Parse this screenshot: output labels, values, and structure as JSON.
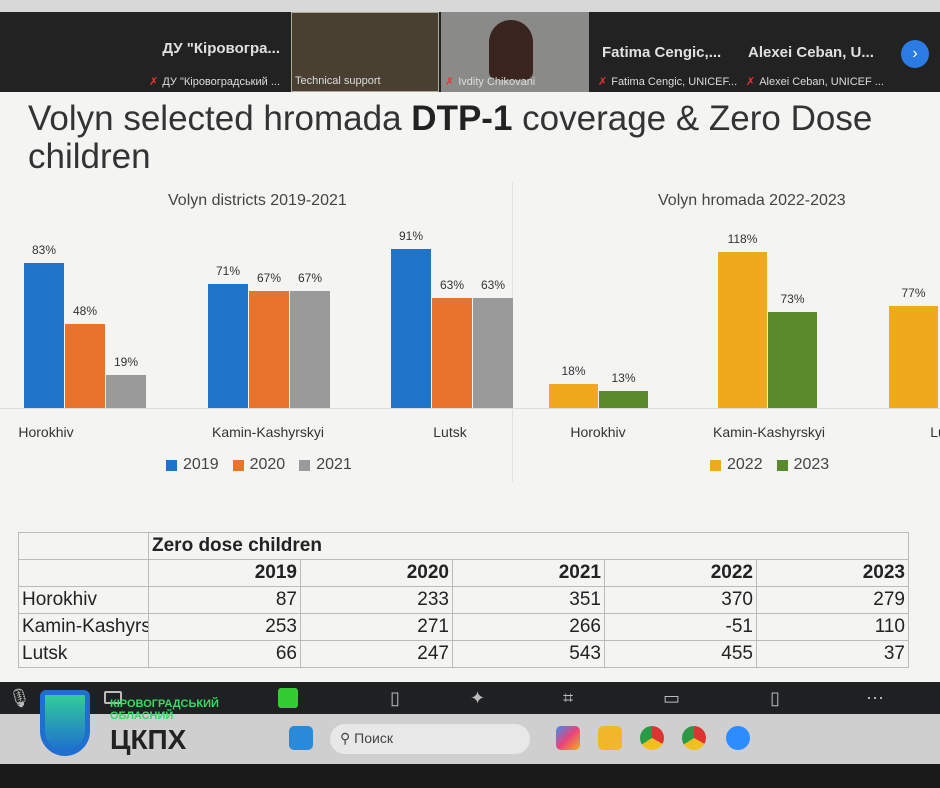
{
  "meeting": {
    "participants": [
      {
        "name": "ДУ \"Кіровогра...",
        "subtitle": "ДУ \"Кіровоградський ..."
      },
      {
        "name": "",
        "subtitle": "Technical support"
      },
      {
        "name": "",
        "subtitle": "Ivdity Chikovani"
      },
      {
        "name": "Fatima  Cengic,...",
        "subtitle": "Fatima Cengic, UNICEF..."
      },
      {
        "name": "Alexei  Ceban,  U...",
        "subtitle": "Alexei Ceban, UNICEF ..."
      }
    ],
    "next_icon": "chevron-right-icon"
  },
  "slide": {
    "title_pre": "Volyn selected hromada ",
    "title_bold": "DTP-1",
    "title_post": " coverage & Zero Dose children"
  },
  "chart_data": [
    {
      "type": "bar",
      "title": "Volyn districts 2019-2021",
      "categories": [
        "Horokhiv",
        "Kamin-Kashyrskyi",
        "Lutsk"
      ],
      "series": [
        {
          "name": "2019",
          "color": "#1f73c8",
          "values": [
            83,
            71,
            91
          ]
        },
        {
          "name": "2020",
          "color": "#e8732a",
          "values": [
            48,
            67,
            63
          ]
        },
        {
          "name": "2021",
          "color": "#9a9a9a",
          "values": [
            19,
            67,
            63
          ]
        }
      ],
      "unit": "%",
      "ylim": [
        0,
        100
      ]
    },
    {
      "type": "bar",
      "title": "Volyn hromada 2022-2023",
      "categories": [
        "Horokhiv",
        "Kamin-Kashyrskyi",
        "Lu"
      ],
      "series": [
        {
          "name": "2022",
          "color": "#f0a91c",
          "values": [
            18,
            118,
            77
          ]
        },
        {
          "name": "2023",
          "color": "#5a8a2c",
          "values": [
            13,
            73,
            null
          ]
        }
      ],
      "unit": "%",
      "ylim": [
        0,
        120
      ]
    }
  ],
  "table": {
    "title": "Zero dose children",
    "years": [
      "2019",
      "2020",
      "2021",
      "2022",
      "2023"
    ],
    "rows": [
      {
        "name": "Horokhiv",
        "values": [
          "87",
          "233",
          "351",
          "370",
          "279"
        ]
      },
      {
        "name": "Kamin-Kashyrskyi",
        "values": [
          "253",
          "271",
          "266",
          "-51",
          "110"
        ]
      },
      {
        "name": "Lutsk",
        "values": [
          "66",
          "247",
          "543",
          "455",
          "37"
        ]
      }
    ]
  },
  "taskbar": {
    "search_placeholder": "Поиск"
  },
  "logo": {
    "line1": "КІРОВОГРАДСЬКИЙ",
    "line2": "ОБЛАСНИЙ",
    "line3": "ЦКПХ"
  }
}
